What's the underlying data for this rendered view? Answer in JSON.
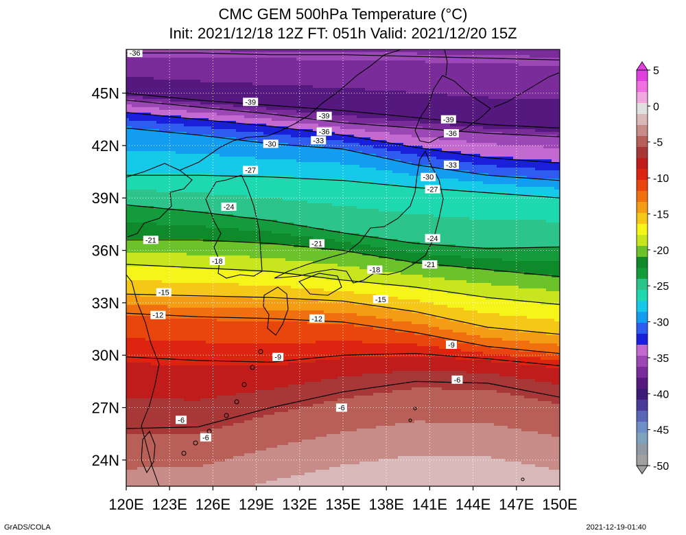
{
  "title": {
    "line1": "CMC GEM 500hPa Temperature (°C)",
    "line2": "Init: 2021/12/18 12Z  FT: 051h  Valid: 2021/12/20 15Z"
  },
  "map": {
    "lon_range": [
      120,
      150
    ],
    "lat_range": [
      22.5,
      47.5
    ],
    "lon_ticks": [
      "120E",
      "123E",
      "126E",
      "129E",
      "132E",
      "135E",
      "138E",
      "141E",
      "144E",
      "147E",
      "150E"
    ],
    "lat_ticks": [
      "24N",
      "27N",
      "30N",
      "33N",
      "36N",
      "39N",
      "42N",
      "45N"
    ],
    "grid": "dotted"
  },
  "colorbar": {
    "labels": [
      "5",
      "0",
      "-5",
      "-10",
      "-15",
      "-20",
      "-25",
      "-30",
      "-35",
      "-40",
      "-45",
      "-50"
    ],
    "min": -50,
    "max": 5
  },
  "contours": [
    {
      "value": -36,
      "label": "-36",
      "lat": [
        47.3,
        47.3,
        47.2,
        47.2,
        47.1,
        47.0,
        46.9
      ]
    },
    {
      "value": -39,
      "label": "-39",
      "lat": [
        45.0,
        44.6,
        44.3,
        44.0,
        43.6,
        43.2,
        43.0
      ]
    },
    {
      "value": -36,
      "label": "-36",
      "lat": [
        44.6,
        44.2,
        43.8,
        43.3,
        43.0,
        42.7,
        42.5
      ]
    },
    {
      "value": -33,
      "label": "-33",
      "lat": [
        43.9,
        43.5,
        43.1,
        42.6,
        41.9,
        41.3,
        41.0
      ]
    },
    {
      "value": -30,
      "label": "-30",
      "lat": [
        43.0,
        42.6,
        42.1,
        41.8,
        40.9,
        40.3,
        40.0
      ]
    },
    {
      "value": -27,
      "label": "-27",
      "lat": [
        40.3,
        40.3,
        40.2,
        40.0,
        39.6,
        39.3,
        39.0
      ]
    },
    {
      "value": -24,
      "label": "-24",
      "lat": [
        38.6,
        38.2,
        37.7,
        37.0,
        36.4,
        36.1,
        36.2
      ]
    },
    {
      "value": -21,
      "label": "-21",
      "lat": [
        36.6,
        36.6,
        36.4,
        36.0,
        35.3,
        34.9,
        34.5
      ]
    },
    {
      "value": -18,
      "label": "-18",
      "lat": [
        35.2,
        35.0,
        34.8,
        34.3,
        33.9,
        33.3,
        32.9
      ]
    },
    {
      "value": -15,
      "label": "-15",
      "lat": [
        33.5,
        33.4,
        33.3,
        33.1,
        32.5,
        31.6,
        31.2
      ]
    },
    {
      "value": -12,
      "label": "-12",
      "lat": [
        32.4,
        32.2,
        32.1,
        31.9,
        31.3,
        30.5,
        30.1
      ]
    },
    {
      "value": -9,
      "label": "-9",
      "lat": [
        29.9,
        29.7,
        29.6,
        30.0,
        30.1,
        29.8,
        29.4
      ]
    },
    {
      "value": -6,
      "label": "-6",
      "lat": [
        25.8,
        25.9,
        27.0,
        27.9,
        28.5,
        28.4,
        27.6
      ]
    }
  ],
  "contour_labels": [
    {
      "text": "-36",
      "lon": 120.6,
      "lat": 47.3
    },
    {
      "text": "-39",
      "lon": 128.6,
      "lat": 44.5
    },
    {
      "text": "-39",
      "lon": 133.7,
      "lat": 43.7
    },
    {
      "text": "-39",
      "lon": 142.3,
      "lat": 43.5
    },
    {
      "text": "-36",
      "lon": 133.7,
      "lat": 42.8
    },
    {
      "text": "-36",
      "lon": 142.5,
      "lat": 42.7
    },
    {
      "text": "-33",
      "lon": 133.3,
      "lat": 42.3
    },
    {
      "text": "-33",
      "lon": 142.5,
      "lat": 40.9
    },
    {
      "text": "-30",
      "lon": 130.0,
      "lat": 42.1
    },
    {
      "text": "-30",
      "lon": 140.9,
      "lat": 40.2
    },
    {
      "text": "-27",
      "lon": 128.6,
      "lat": 40.6
    },
    {
      "text": "-27",
      "lon": 141.2,
      "lat": 39.5
    },
    {
      "text": "-24",
      "lon": 127.1,
      "lat": 38.5
    },
    {
      "text": "-24",
      "lon": 141.2,
      "lat": 36.7
    },
    {
      "text": "-21",
      "lon": 121.7,
      "lat": 36.6
    },
    {
      "text": "-21",
      "lon": 133.2,
      "lat": 36.4
    },
    {
      "text": "-21",
      "lon": 141.0,
      "lat": 35.2
    },
    {
      "text": "-18",
      "lon": 126.3,
      "lat": 35.4
    },
    {
      "text": "-18",
      "lon": 137.2,
      "lat": 34.9
    },
    {
      "text": "-15",
      "lon": 122.6,
      "lat": 33.6
    },
    {
      "text": "-15",
      "lon": 137.6,
      "lat": 33.2
    },
    {
      "text": "-12",
      "lon": 122.2,
      "lat": 32.3
    },
    {
      "text": "-12",
      "lon": 133.2,
      "lat": 32.1
    },
    {
      "text": "-9",
      "lon": 130.5,
      "lat": 29.9
    },
    {
      "text": "-9",
      "lon": 142.5,
      "lat": 30.6
    },
    {
      "text": "-6",
      "lon": 142.9,
      "lat": 28.6
    },
    {
      "text": "-6",
      "lon": 134.9,
      "lat": 27.0
    },
    {
      "text": "-6",
      "lon": 123.8,
      "lat": 26.3
    },
    {
      "text": "-6",
      "lon": 125.5,
      "lat": 25.3
    }
  ],
  "colors": {
    "ramp": [
      "#a0a0a0",
      "#8f9aa6",
      "#7fa3bd",
      "#6f8fc8",
      "#5a65b5",
      "#4a3a9a",
      "#3c1a78",
      "#55187f",
      "#7a2d9a",
      "#9b48b6",
      "#c36ad0",
      "#1a1fd9",
      "#2e5cf0",
      "#129df0",
      "#16c9e8",
      "#1ed9b0",
      "#2cc48a",
      "#149b3c",
      "#0e8a2a",
      "#6cc22a",
      "#c8e61e",
      "#f5f51a",
      "#f5c818",
      "#f49c14",
      "#f07010",
      "#e8460c",
      "#dc2410",
      "#c01c1c",
      "#a83838",
      "#b86058",
      "#c88c88",
      "#d8b8b8",
      "#e0e0e0",
      "#f0a8e0",
      "#f070e0",
      "#e040e0"
    ],
    "contour": "#000000",
    "coast": "#000000"
  },
  "footer": {
    "credit": "GrADS/COLA",
    "timestamp": "2021-12-19-01:40"
  }
}
